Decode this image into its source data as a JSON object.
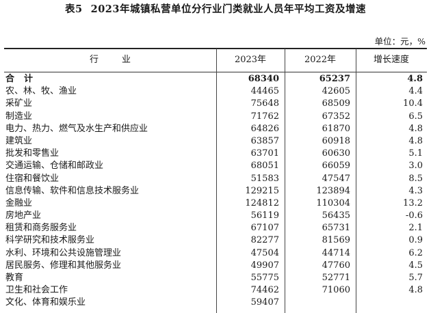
{
  "table": {
    "number": "表5",
    "title": "2023年城镇私营单位分行业门类就业人员年平均工资及增速",
    "unit": "单位：元，%",
    "headers": {
      "industry": "行业",
      "year2023": "2023年",
      "year2022": "2022年",
      "growth": "增长速度"
    },
    "rows": [
      {
        "industry": "合计",
        "y2023": "68340",
        "y2022": "65237",
        "growth": "4.8"
      },
      {
        "industry": "农、林、牧、渔业",
        "y2023": "44465",
        "y2022": "42605",
        "growth": "4.4"
      },
      {
        "industry": "采矿业",
        "y2023": "75648",
        "y2022": "68509",
        "growth": "10.4"
      },
      {
        "industry": "制造业",
        "y2023": "71762",
        "y2022": "67352",
        "growth": "6.5"
      },
      {
        "industry": "电力、热力、燃气及水生产和供应业",
        "y2023": "64826",
        "y2022": "61870",
        "growth": "4.8"
      },
      {
        "industry": "建筑业",
        "y2023": "63857",
        "y2022": "60918",
        "growth": "4.8"
      },
      {
        "industry": "批发和零售业",
        "y2023": "63701",
        "y2022": "60630",
        "growth": "5.1"
      },
      {
        "industry": "交通运输、仓储和邮政业",
        "y2023": "68051",
        "y2022": "66059",
        "growth": "3.0"
      },
      {
        "industry": "住宿和餐饮业",
        "y2023": "51583",
        "y2022": "47547",
        "growth": "8.5"
      },
      {
        "industry": "信息传输、软件和信息技术服务业",
        "y2023": "129215",
        "y2022": "123894",
        "growth": "4.3"
      },
      {
        "industry": "金融业",
        "y2023": "124812",
        "y2022": "110304",
        "growth": "13.2"
      },
      {
        "industry": "房地产业",
        "y2023": "56119",
        "y2022": "56435",
        "growth": "-0.6"
      },
      {
        "industry": "租赁和商务服务业",
        "y2023": "67107",
        "y2022": "65731",
        "growth": "2.1"
      },
      {
        "industry": "科学研究和技术服务业",
        "y2023": "82277",
        "y2022": "81569",
        "growth": "0.9"
      },
      {
        "industry": "水利、环境和公共设施管理业",
        "y2023": "47504",
        "y2022": "44714",
        "growth": "6.2"
      },
      {
        "industry": "居民服务、修理和其他服务业",
        "y2023": "49907",
        "y2022": "47760",
        "growth": "4.5"
      },
      {
        "industry": "教育",
        "y2023": "55775",
        "y2022": "52771",
        "growth": "5.7"
      },
      {
        "industry": "卫生和社会工作",
        "y2023": "74462",
        "y2022": "71060",
        "growth": "4.8"
      },
      {
        "industry": "文化、体育和娱乐业",
        "y2023": "59407",
        "y2022": "",
        "growth": ""
      }
    ]
  }
}
